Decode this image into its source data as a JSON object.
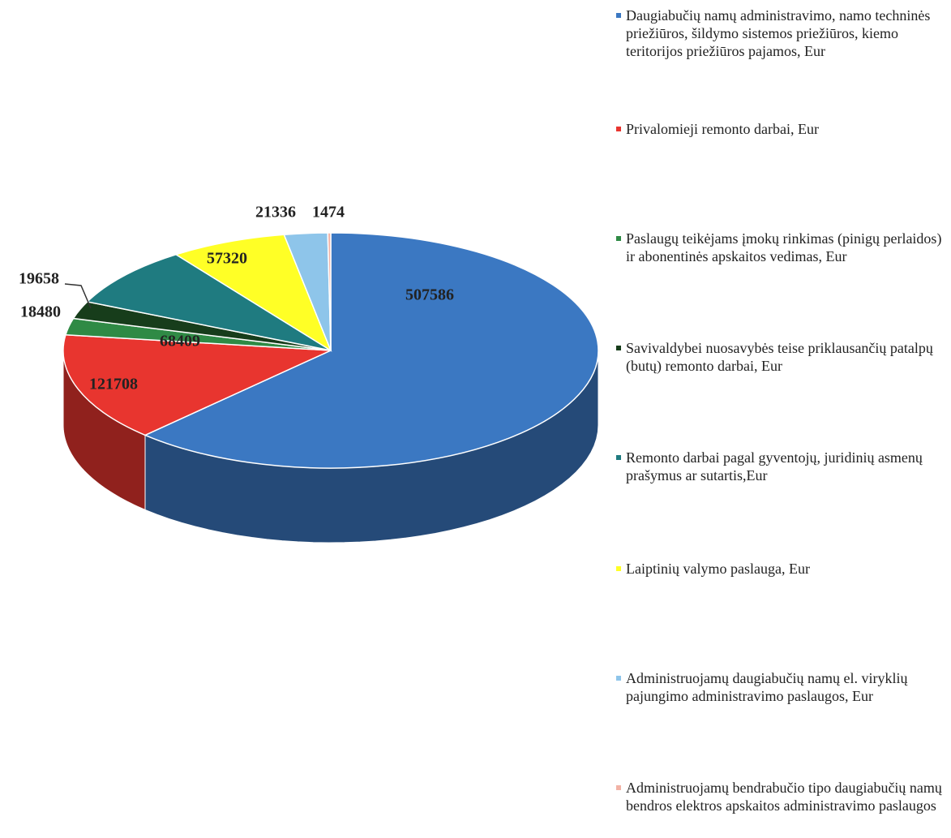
{
  "chart_data": {
    "type": "pie",
    "categories": [
      "Daugiabučių namų administravimo, namo techninės priežiūros, šildymo sistemos priežiūros,  kiemo teritorijos priežiūros pajamos, Eur",
      "Privalomieji remonto darbai, Eur",
      "Paslaugų teikėjams įmokų rinkimas (pinigų perlaidos) ir abonentinės apskaitos vedimas, Eur",
      "Savivaldybei nuosavybės teise priklausančių patalpų (butų) remonto darbai, Eur",
      "Remonto darbai pagal gyventojų, juridinių asmenų prašymus ar sutartis,Eur",
      "Laiptinių valymo paslauga, Eur",
      "Administruojamų daugiabučių namų el. viryklių pajungimo administravimo paslaugos, Eur",
      "Administruojamų bendrabučio tipo daugiabučių namų bendros elektros apskaitos administravimo paslaugos"
    ],
    "values": [
      507586,
      121708,
      18480,
      19658,
      68409,
      57320,
      21336,
      1474
    ],
    "colors": [
      "#3b78c2",
      "#e8352f",
      "#2f8a45",
      "#173d1b",
      "#1f7b80",
      "#ffff26",
      "#8ec5ea",
      "#f2b3a6"
    ],
    "legend": "right"
  }
}
